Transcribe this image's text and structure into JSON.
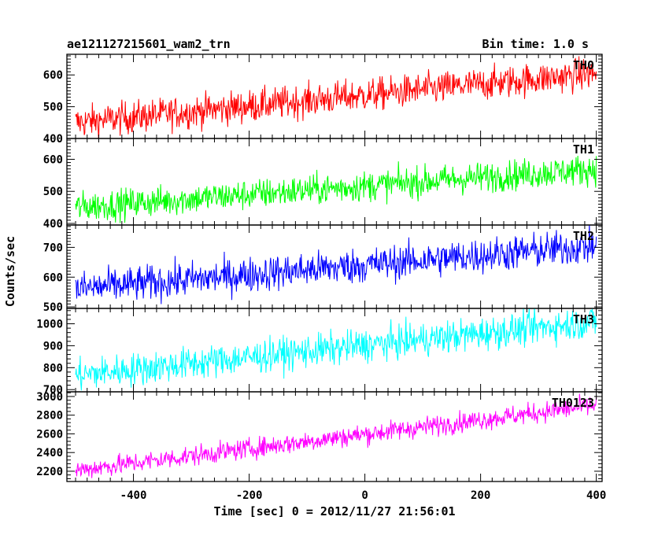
{
  "chart_data": {
    "type": "line",
    "title_left": "ae121127215601_wam2_trn",
    "title_right": "Bin time: 1.0 s",
    "xlabel": "Time [sec] 0 = 2012/11/27 21:56:01",
    "ylabel": "Counts/sec",
    "xlim": [
      -515,
      410
    ],
    "xticks": [
      -400,
      -200,
      0,
      200,
      400
    ],
    "x_range": [
      -500,
      400
    ],
    "bin_time_s": 1.0,
    "panels": [
      {
        "name": "TH0",
        "color": "#ff0000",
        "ylim": [
          400,
          665
        ],
        "yticks": [
          400,
          500,
          600
        ],
        "trend_start": 450,
        "trend_end": 605,
        "noise": 26
      },
      {
        "name": "TH1",
        "color": "#00ff00",
        "ylim": [
          395,
          665
        ],
        "yticks": [
          400,
          500,
          600
        ],
        "trend_start": 450,
        "trend_end": 570,
        "noise": 24
      },
      {
        "name": "TH2",
        "color": "#0000ff",
        "ylim": [
          495,
          775
        ],
        "yticks": [
          500,
          600,
          700
        ],
        "trend_start": 560,
        "trend_end": 705,
        "noise": 30
      },
      {
        "name": "TH3",
        "color": "#00ffff",
        "ylim": [
          690,
          1070
        ],
        "yticks": [
          700,
          800,
          900,
          1000
        ],
        "trend_start": 765,
        "trend_end": 1010,
        "noise": 38
      },
      {
        "name": "TH0123",
        "color": "#ff00ff",
        "ylim": [
          2090,
          3050
        ],
        "yticks": [
          2200,
          2400,
          2600,
          2800,
          3000
        ],
        "trend_start": 2210,
        "trend_end": 2905,
        "noise": 55
      }
    ]
  }
}
